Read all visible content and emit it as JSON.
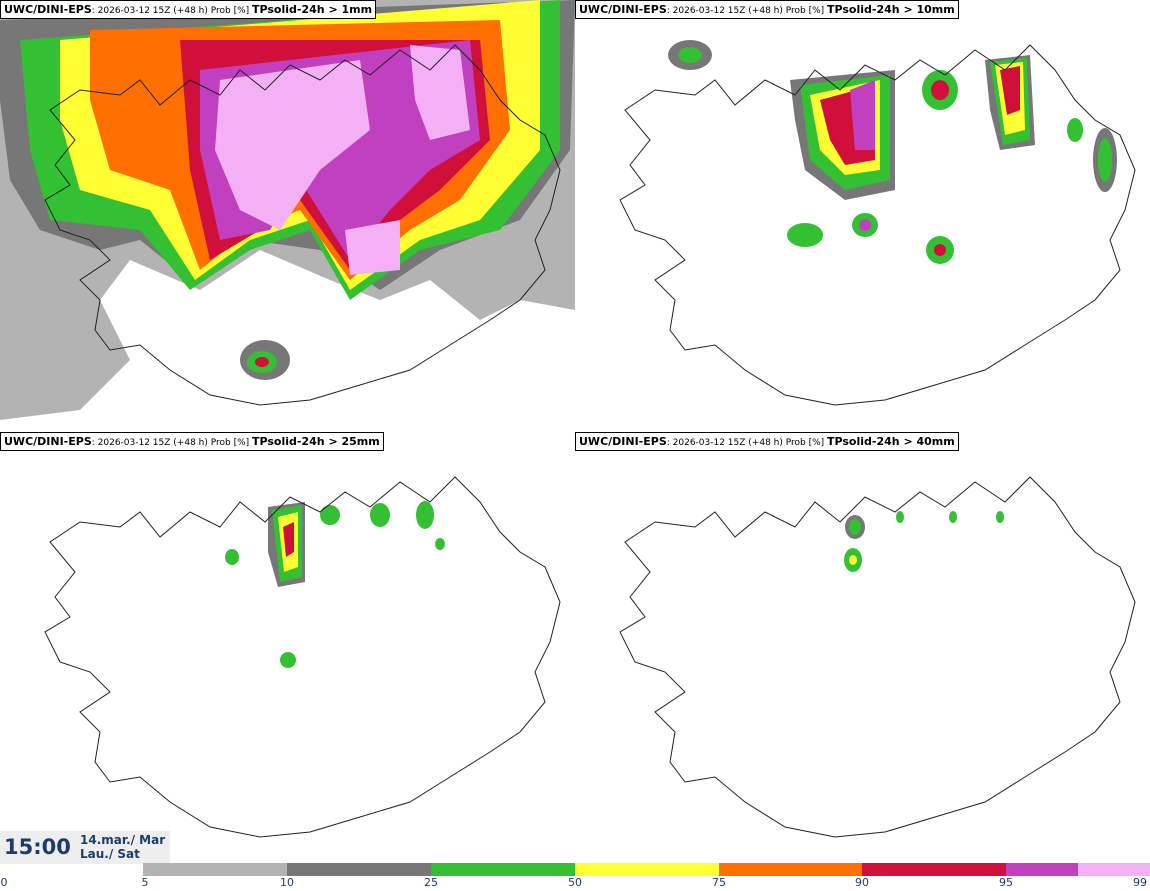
{
  "panels": [
    {
      "model": "UWC/DINI-EPS",
      "meta": ": 2026-03-12 15Z (+48 h) Prob [%] ",
      "param": "TPsolid-24h > 1mm"
    },
    {
      "model": "UWC/DINI-EPS",
      "meta": ": 2026-03-12 15Z (+48 h) Prob [%] ",
      "param": "TPsolid-24h > 10mm"
    },
    {
      "model": "UWC/DINI-EPS",
      "meta": ": 2026-03-12 15Z (+48 h) Prob [%] ",
      "param": "TPsolid-24h > 25mm"
    },
    {
      "model": "UWC/DINI-EPS",
      "meta": ": 2026-03-12 15Z (+48 h) Prob [%] ",
      "param": "TPsolid-24h > 40mm"
    }
  ],
  "valid_time": {
    "time": "15:00",
    "date_line1": "14.mar./ Mar",
    "date_line2": "Lau./ Sat"
  },
  "colorbar": {
    "ticks": [
      "0",
      "5",
      "10",
      "25",
      "50",
      "75",
      "90",
      "95",
      "99"
    ],
    "colors": [
      "#b3b3b3",
      "#777777",
      "#33c033",
      "#ffff33",
      "#ff7000",
      "#d0103a",
      "#c040c0",
      "#f4b0f4"
    ]
  },
  "legend_icons": [
    "iceland-coastline-icon"
  ]
}
